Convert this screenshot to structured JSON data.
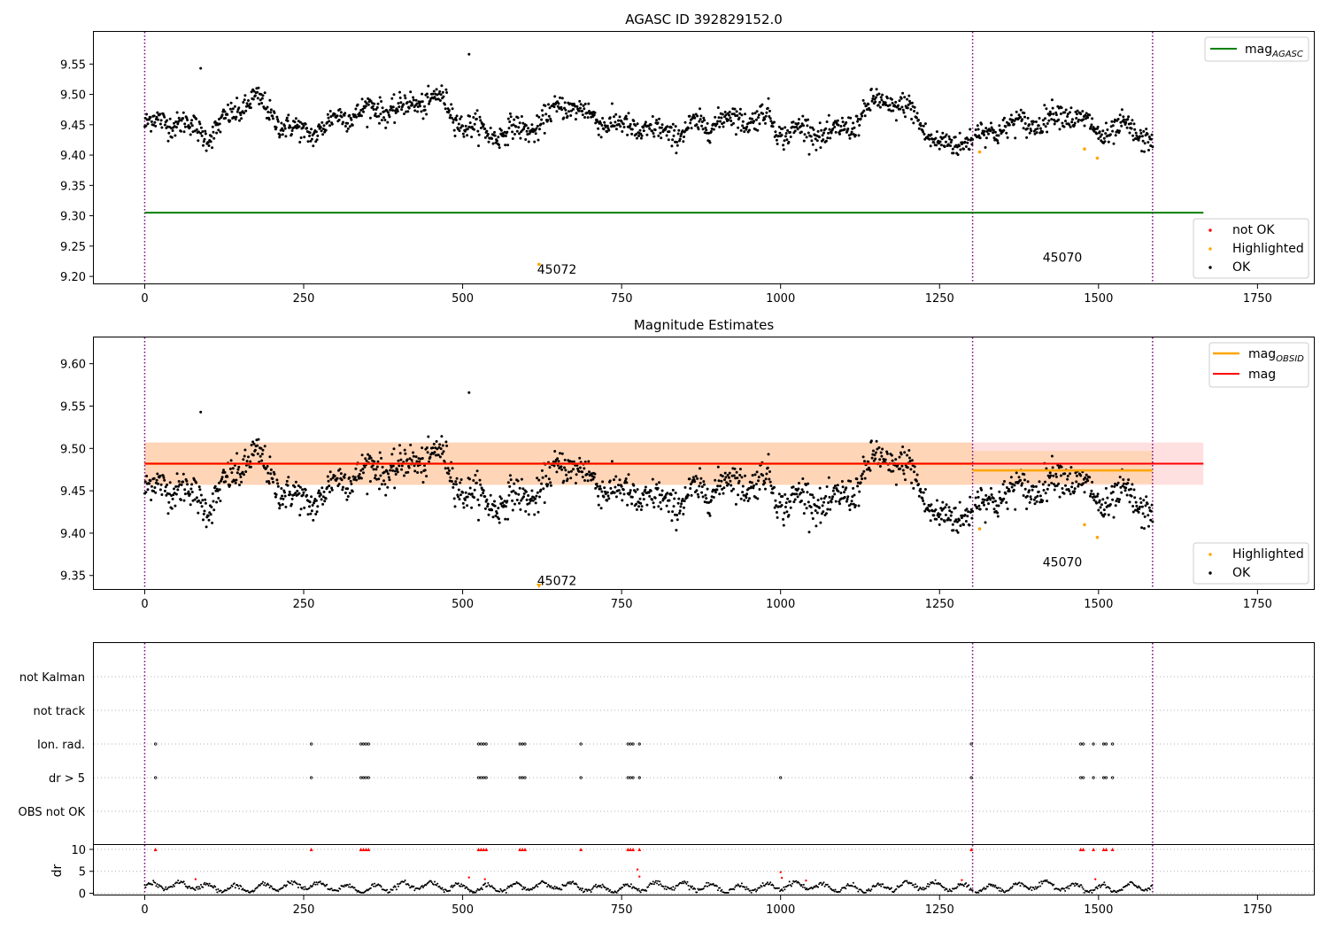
{
  "chart_data": [
    {
      "type": "scatter",
      "title": "AGASC ID 392829152.0",
      "xlabel": "",
      "ylabel": "",
      "xlim": [
        -80,
        1840
      ],
      "ylim": [
        9.187,
        9.603
      ],
      "xticks": [
        0,
        250,
        500,
        750,
        1000,
        1250,
        1500,
        1750
      ],
      "yticks": [
        9.2,
        9.25,
        9.3,
        9.35,
        9.4,
        9.45,
        9.5,
        9.55
      ],
      "grid": false,
      "vlines": [
        0,
        1302,
        1585
      ],
      "hline": {
        "name": "mag_AGASC",
        "y": 9.305,
        "x_range": [
          0,
          1665
        ],
        "color": "#008000"
      },
      "legends": [
        {
          "placement": "top-right",
          "entries": [
            {
              "label": "mag",
              "sub": "AGASC",
              "marker": "line",
              "color": "#008000"
            }
          ]
        },
        {
          "placement": "lower-right",
          "entries": [
            {
              "label": "not OK",
              "marker": "dot",
              "color": "#ff0000"
            },
            {
              "label": "Highlighted",
              "marker": "dot",
              "color": "#ffa500"
            },
            {
              "label": "OK",
              "marker": "dot",
              "color": "#000000"
            }
          ]
        }
      ],
      "annotations": [
        {
          "text": "45072",
          "x": 620,
          "y": 9.21
        },
        {
          "text": "45070",
          "x": 1415,
          "y": 9.23
        }
      ],
      "highlighted_points": [
        {
          "x": 620,
          "y": 9.22
        },
        {
          "x": 1313,
          "y": 9.405
        },
        {
          "x": 1478,
          "y": 9.41
        },
        {
          "x": 1498,
          "y": 9.395
        }
      ],
      "series_profile": {
        "name": "OK",
        "x_range": [
          0,
          1585
        ],
        "approx_level": [
          [
            0,
            9.45
          ],
          [
            50,
            9.45
          ],
          [
            100,
            9.44
          ],
          [
            170,
            9.49
          ],
          [
            200,
            9.46
          ],
          [
            250,
            9.44
          ],
          [
            380,
            9.48
          ],
          [
            460,
            9.49
          ],
          [
            500,
            9.45
          ],
          [
            560,
            9.44
          ],
          [
            620,
            9.44
          ],
          [
            660,
            9.49
          ],
          [
            700,
            9.47
          ],
          [
            750,
            9.44
          ],
          [
            800,
            9.44
          ],
          [
            900,
            9.45
          ],
          [
            980,
            9.47
          ],
          [
            1000,
            9.44
          ],
          [
            1080,
            9.43
          ],
          [
            1150,
            9.49
          ],
          [
            1200,
            9.47
          ],
          [
            1250,
            9.42
          ],
          [
            1300,
            9.43
          ],
          [
            1320,
            9.43
          ],
          [
            1400,
            9.46
          ],
          [
            1450,
            9.47
          ],
          [
            1500,
            9.43
          ],
          [
            1540,
            9.45
          ],
          [
            1585,
            9.43
          ]
        ]
      }
    },
    {
      "type": "scatter",
      "title": "Magnitude Estimates",
      "xlabel": "",
      "ylabel": "",
      "xlim": [
        -80,
        1840
      ],
      "ylim": [
        9.333,
        9.631
      ],
      "xticks": [
        0,
        250,
        500,
        750,
        1000,
        1250,
        1500,
        1750
      ],
      "yticks": [
        9.35,
        9.4,
        9.45,
        9.5,
        9.55,
        9.6
      ],
      "grid": false,
      "vlines": [
        0,
        1302,
        1585
      ],
      "lines": [
        {
          "name": "mag",
          "y": 9.482,
          "x_range": [
            0,
            1665
          ],
          "band": [
            9.457,
            9.507
          ],
          "color": "#ff0000"
        },
        {
          "name": "mag_OBSID",
          "segments": [
            {
              "x_range": [
                0,
                1302
              ],
              "y": 9.482,
              "band": [
                9.457,
                9.507
              ]
            },
            {
              "x_range": [
                1302,
                1585
              ],
              "y": 9.474,
              "band": [
                9.458,
                9.497
              ]
            }
          ],
          "color": "#ffa500"
        }
      ],
      "legends": [
        {
          "placement": "top-right",
          "entries": [
            {
              "label": "mag",
              "sub": "OBSID",
              "marker": "line",
              "color": "#ffa500"
            },
            {
              "label": "mag",
              "marker": "line",
              "color": "#ff0000"
            }
          ]
        },
        {
          "placement": "lower-right",
          "entries": [
            {
              "label": "Highlighted",
              "marker": "dot",
              "color": "#ffa500"
            },
            {
              "label": "OK",
              "marker": "dot",
              "color": "#000000"
            }
          ]
        }
      ],
      "annotations": [
        {
          "text": "45072",
          "x": 620,
          "y": 9.343
        },
        {
          "text": "45070",
          "x": 1415,
          "y": 9.365
        }
      ],
      "highlighted_points": [
        {
          "x": 620,
          "y": 9.336
        },
        {
          "x": 1313,
          "y": 9.405
        },
        {
          "x": 1478,
          "y": 9.41
        },
        {
          "x": 1498,
          "y": 9.395
        }
      ]
    },
    {
      "type": "scatter",
      "title": "",
      "xlim": [
        -80,
        1840
      ],
      "xticks": [
        0,
        250,
        500,
        750,
        1000,
        1250,
        1500,
        1750
      ],
      "vlines": [
        0,
        1302,
        1585
      ],
      "flag_rows": [
        "not Kalman",
        "not track",
        "Ion. rad.",
        "dr > 5",
        "OBS not OK"
      ],
      "flag_points": {
        "Ion. rad.": [
          17,
          262,
          340,
          344,
          348,
          352,
          525,
          529,
          533,
          537,
          590,
          594,
          598,
          686,
          760,
          764,
          768,
          778,
          1300,
          1472,
          1476,
          1492,
          1508,
          1512,
          1522
        ],
        "dr > 5": [
          17,
          262,
          340,
          344,
          348,
          352,
          525,
          529,
          533,
          537,
          590,
          594,
          598,
          686,
          760,
          764,
          768,
          778,
          1000,
          1300,
          1472,
          1476,
          1492,
          1508,
          1512,
          1522
        ]
      },
      "dr_panel": {
        "ylabel": "dr",
        "ylim": [
          -0.5,
          11
        ],
        "yticks": [
          0,
          5,
          10
        ],
        "clipped_value": 10,
        "clipped_x": [
          17,
          262,
          340,
          344,
          348,
          352,
          525,
          529,
          533,
          537,
          590,
          594,
          598,
          686,
          760,
          764,
          768,
          778,
          1300,
          1472,
          1476,
          1492,
          1508,
          1512,
          1522
        ],
        "red_points": [
          {
            "x": 510,
            "y": 3.6
          },
          {
            "x": 535,
            "y": 3.2
          },
          {
            "x": 775,
            "y": 5.4
          },
          {
            "x": 778,
            "y": 3.8
          },
          {
            "x": 1000,
            "y": 4.8
          },
          {
            "x": 1002,
            "y": 3.5
          },
          {
            "x": 1040,
            "y": 2.9
          },
          {
            "x": 1285,
            "y": 3.0
          },
          {
            "x": 1495,
            "y": 3.2
          },
          {
            "x": 80,
            "y": 3.2
          }
        ],
        "typical_range": [
          0.3,
          3.0
        ]
      }
    }
  ]
}
